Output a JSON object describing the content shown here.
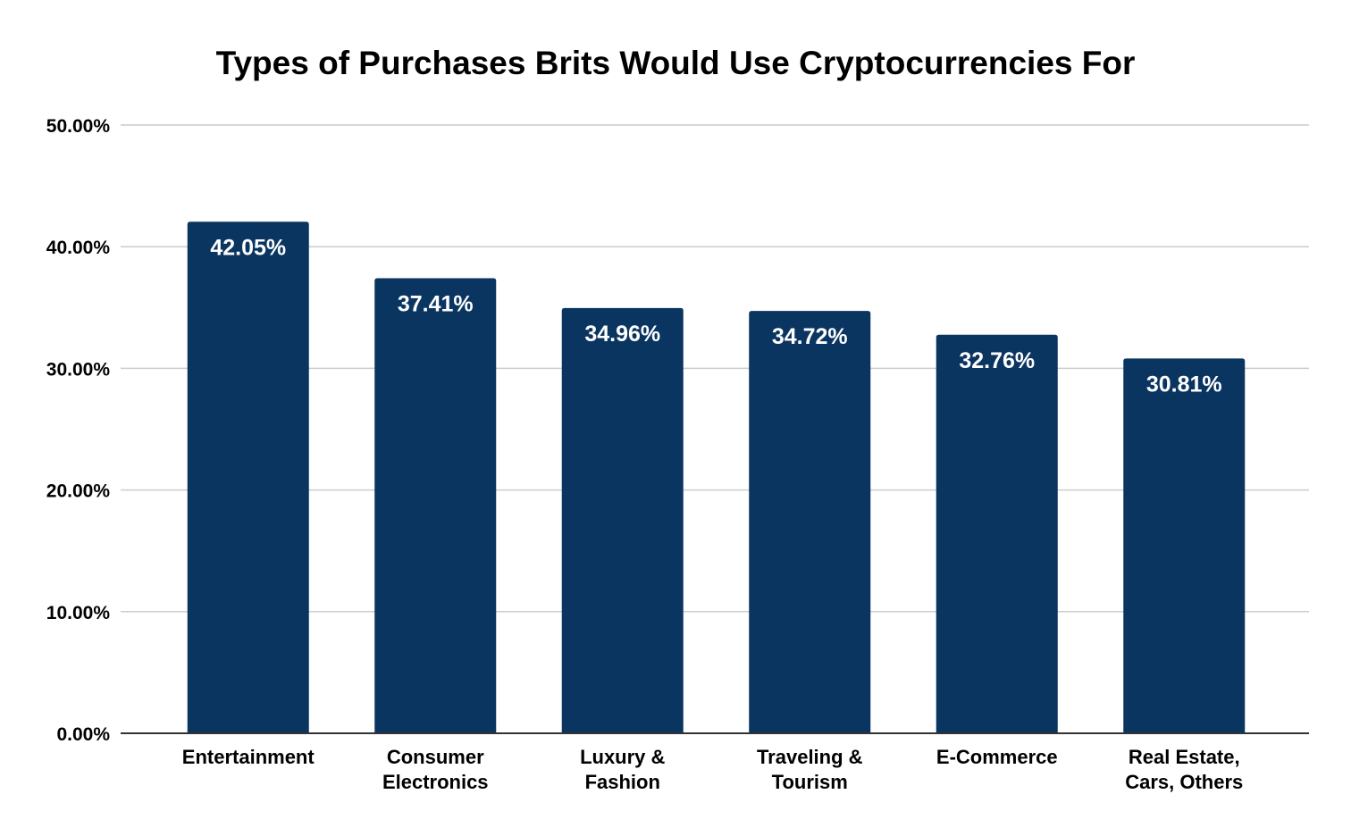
{
  "chart_data": {
    "type": "bar",
    "title": "Types of Purchases Brits Would Use Cryptocurrencies For",
    "xlabel": "",
    "ylabel": "",
    "categories": [
      [
        "Entertainment"
      ],
      [
        "Consumer",
        "Electronics"
      ],
      [
        "Luxury &",
        "Fashion"
      ],
      [
        "Traveling &",
        "Tourism"
      ],
      [
        "E-Commerce"
      ],
      [
        "Real Estate,",
        "Cars, Others"
      ]
    ],
    "values": [
      42.05,
      37.41,
      34.96,
      34.72,
      32.76,
      30.81
    ],
    "value_labels": [
      "42.05%",
      "37.41%",
      "34.96%",
      "34.72%",
      "32.76%",
      "30.81%"
    ],
    "ylim": [
      0,
      50
    ],
    "yticks": [
      0,
      10,
      20,
      30,
      40,
      50
    ],
    "ytick_labels": [
      "0.00%",
      "10.00%",
      "20.00%",
      "30.00%",
      "40.00%",
      "50.00%"
    ],
    "grid": true,
    "legend": "none",
    "colors": {
      "bar": "#0b3561",
      "bar_label": "#ffffff",
      "grid": "#cccccc",
      "axis": "#333333",
      "text": "#000000"
    }
  }
}
